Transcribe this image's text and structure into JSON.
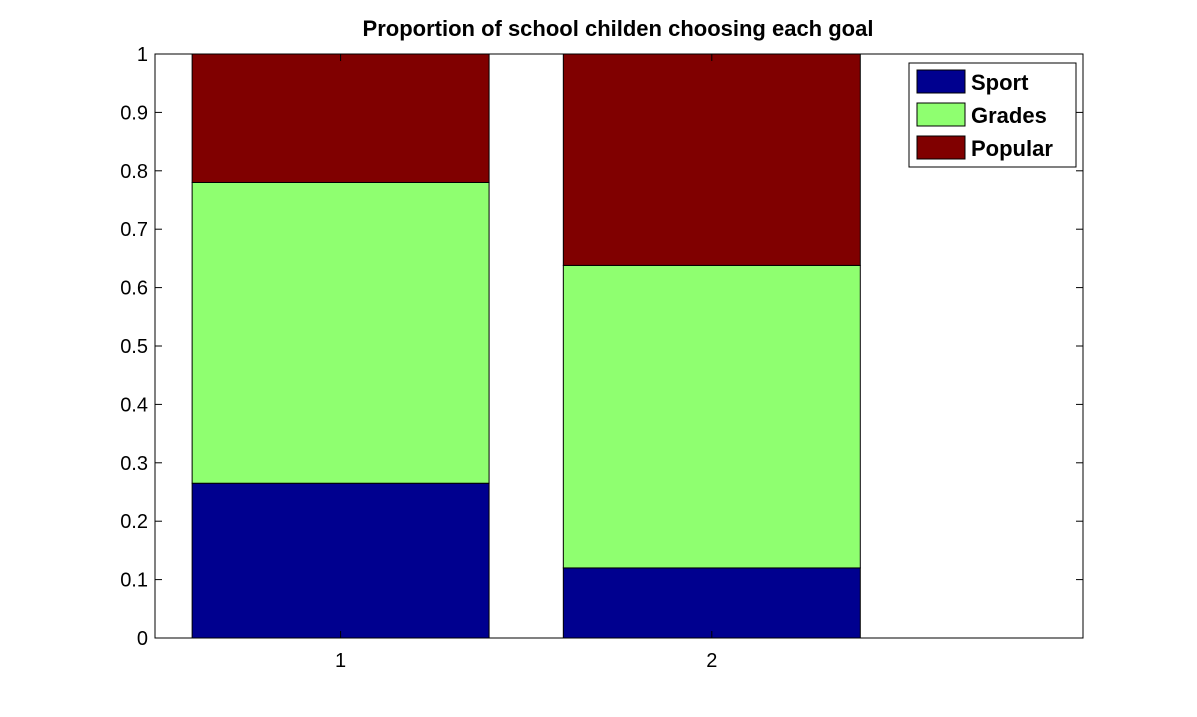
{
  "chart_data": {
    "type": "bar",
    "stacked": true,
    "title": "Proportion of school childen choosing each goal",
    "xlabel": "",
    "ylabel": "",
    "categories": [
      "1",
      "2"
    ],
    "xlim": [
      0.5,
      3.0
    ],
    "ylim": [
      0,
      1
    ],
    "yticks": [
      "0",
      "0.1",
      "0.2",
      "0.3",
      "0.4",
      "0.5",
      "0.6",
      "0.7",
      "0.8",
      "0.9",
      "1"
    ],
    "grid": false,
    "legend_position": "top-right",
    "series": [
      {
        "name": "Sport",
        "color": "#00008f",
        "values": [
          0.265,
          0.12
        ]
      },
      {
        "name": "Grades",
        "color": "#8fff70",
        "values": [
          0.515,
          0.518
        ]
      },
      {
        "name": "Popular",
        "color": "#800000",
        "values": [
          0.22,
          0.362
        ]
      }
    ]
  }
}
